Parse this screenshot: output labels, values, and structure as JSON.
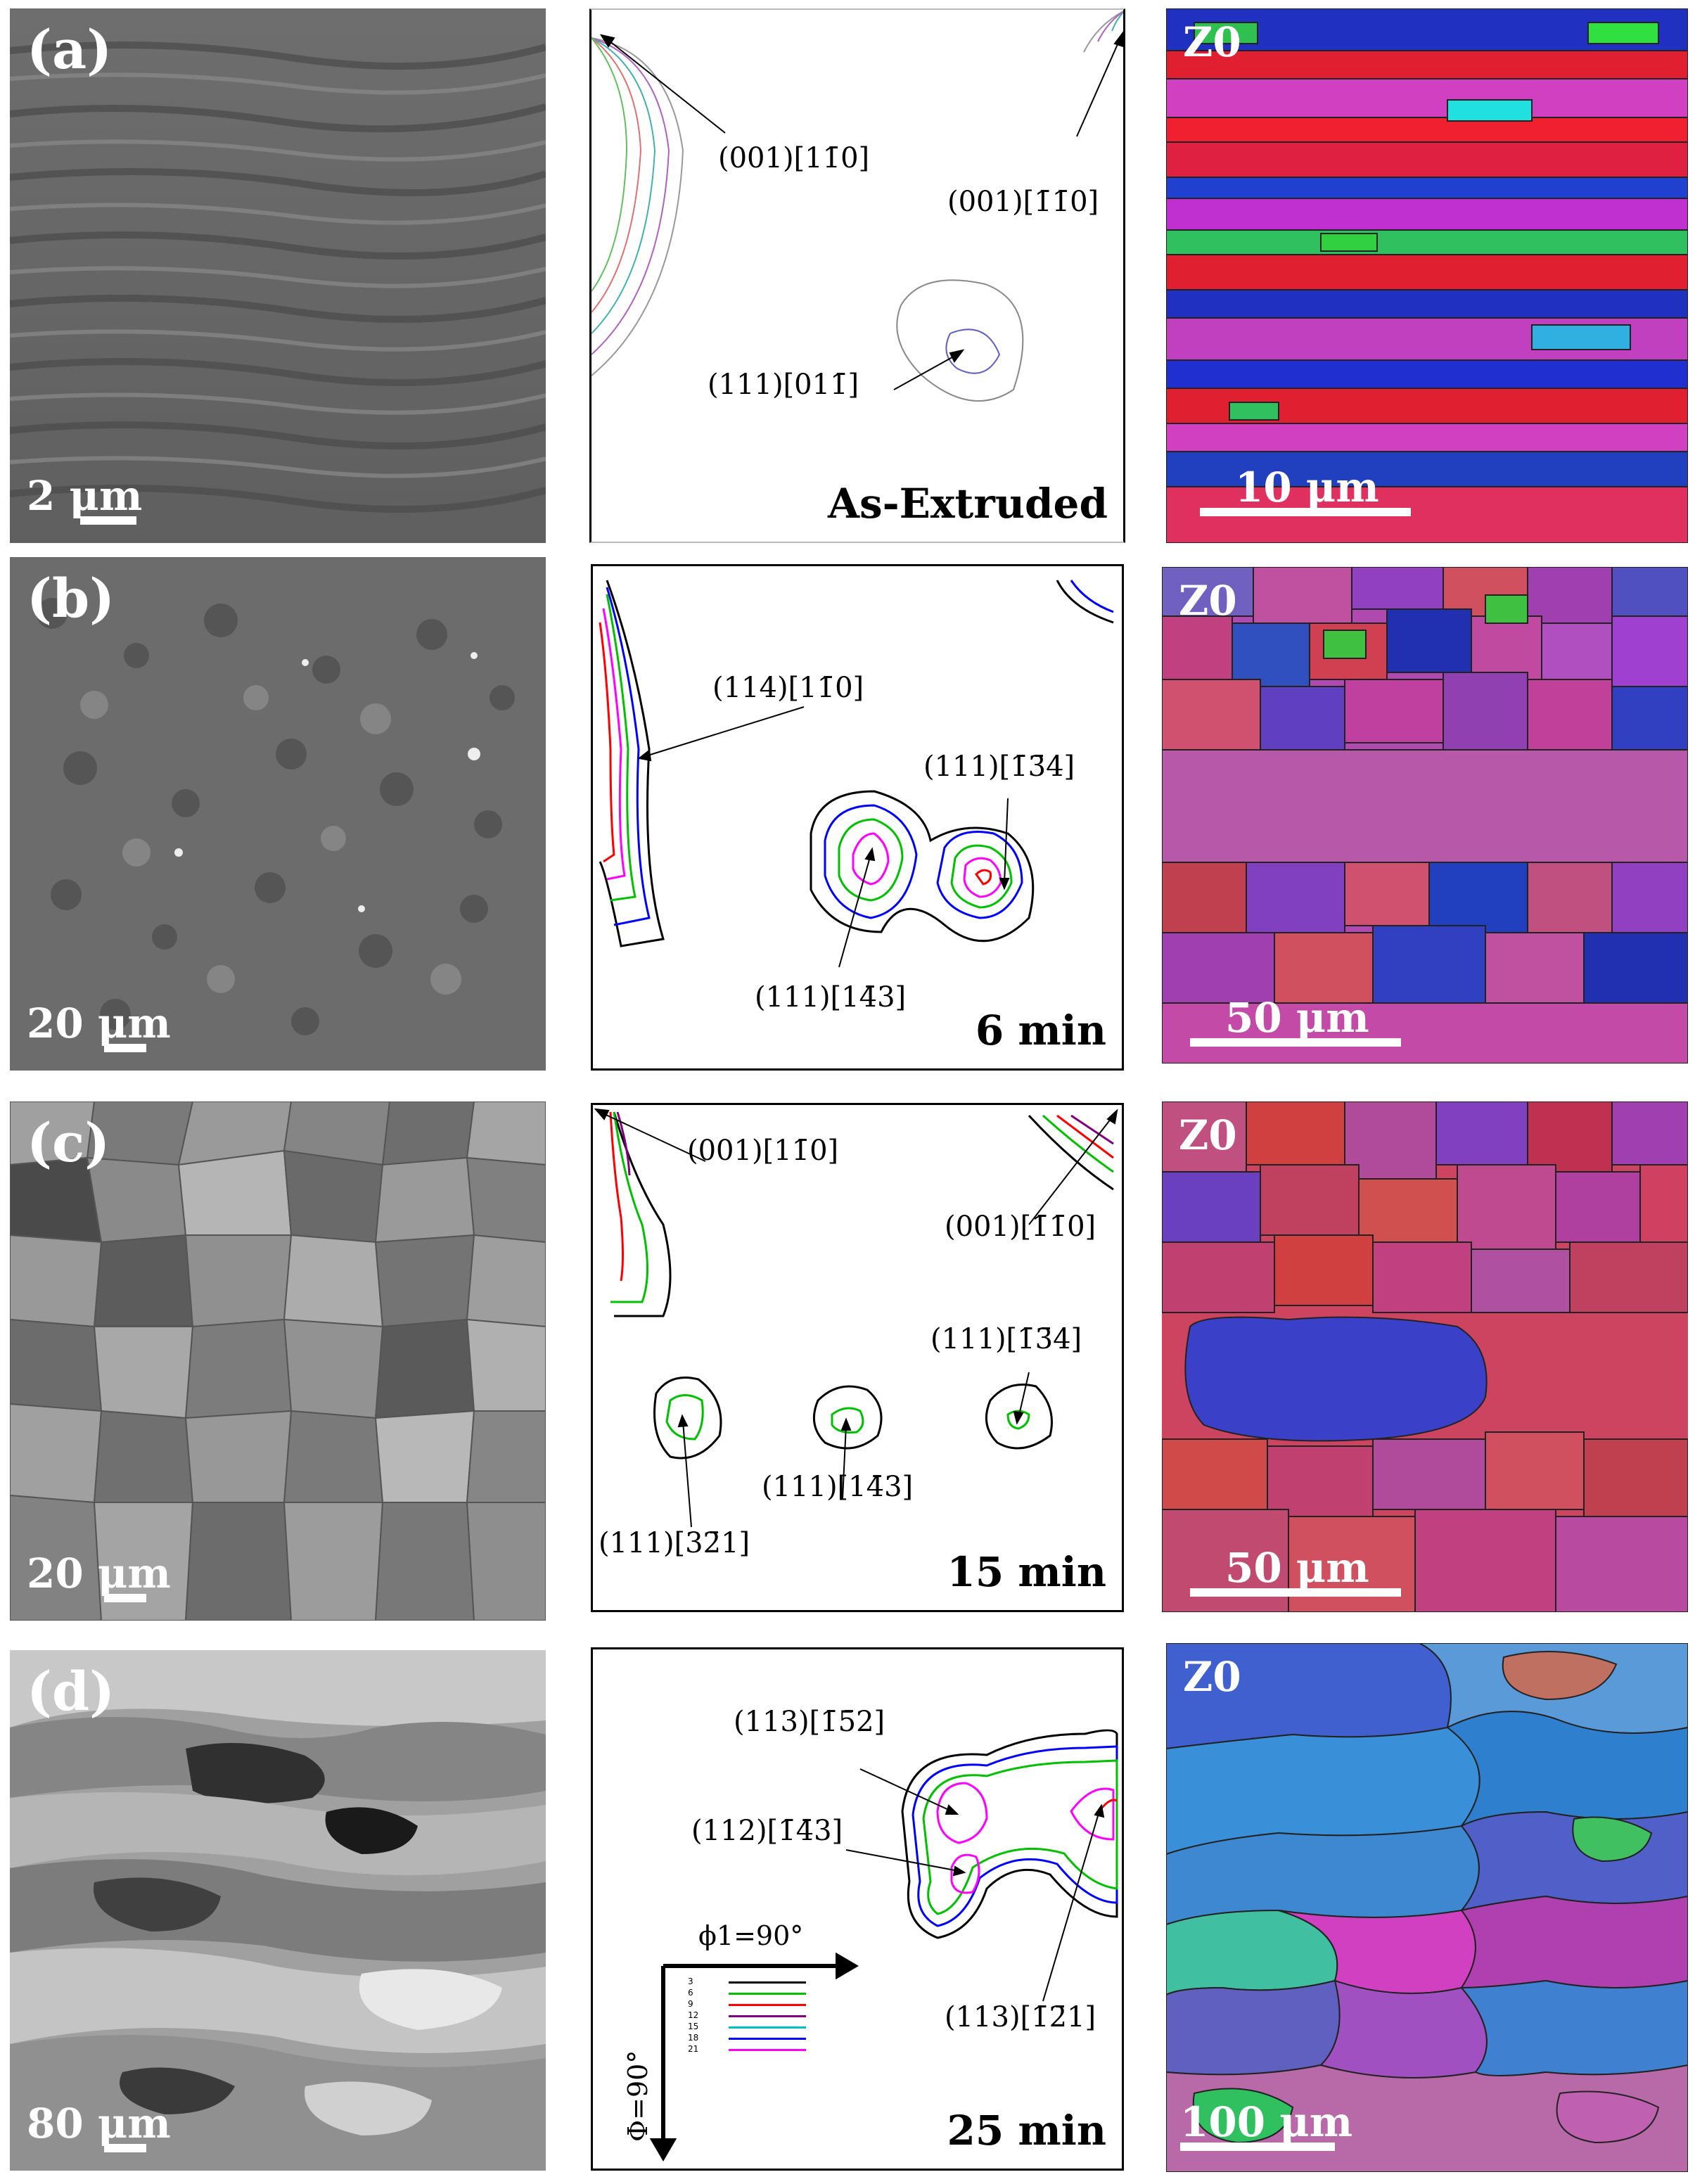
{
  "rows": [
    {
      "label": "(a)",
      "sem_scale": "2 μm",
      "odf_condition": "As-Extruded",
      "odf_labels": [
        "(001)[11̄0]",
        "(001)[1̄1̄0]",
        "(111)[011̄]"
      ],
      "ebsd_tag": "Z0",
      "ebsd_scale": "10 μm"
    },
    {
      "label": "(b)",
      "sem_scale": "20 μm",
      "odf_condition": "6 min",
      "odf_labels": [
        "(114)[11̄0]",
        "(111)[1̄3̄4]",
        "(111)[14̄3]"
      ],
      "ebsd_tag": "Z0",
      "ebsd_scale": "50 μm"
    },
    {
      "label": "(c)",
      "sem_scale": "20 μm",
      "odf_condition": "15 min",
      "odf_labels": [
        "(001)[11̄0]",
        "(001)[1̄1̄0]",
        "(111)[1̄3̄4]",
        "(111)[14̄3]",
        "(111)[32̄1]"
      ],
      "ebsd_tag": "Z0",
      "ebsd_scale": "50 μm"
    },
    {
      "label": "(d)",
      "sem_scale": "80 μm",
      "odf_condition": "25 min",
      "odf_labels": [
        "(113)[1̄5̄2]",
        "(112)[1̄4̄3]",
        "(113)[1̄2̄1]"
      ],
      "ebsd_tag": "Z0",
      "ebsd_scale": "100 μm"
    }
  ],
  "axes": {
    "phi1": "ϕ1=90°",
    "Phi": "Φ=90°"
  },
  "legend": [
    {
      "level": "3",
      "color": "#000000"
    },
    {
      "level": "6",
      "color": "#00c000"
    },
    {
      "level": "9",
      "color": "#ff0000"
    },
    {
      "level": "12",
      "color": "#800080"
    },
    {
      "level": "15",
      "color": "#00c0c0"
    },
    {
      "level": "18",
      "color": "#0000ff"
    },
    {
      "level": "21",
      "color": "#ff00ff"
    }
  ]
}
